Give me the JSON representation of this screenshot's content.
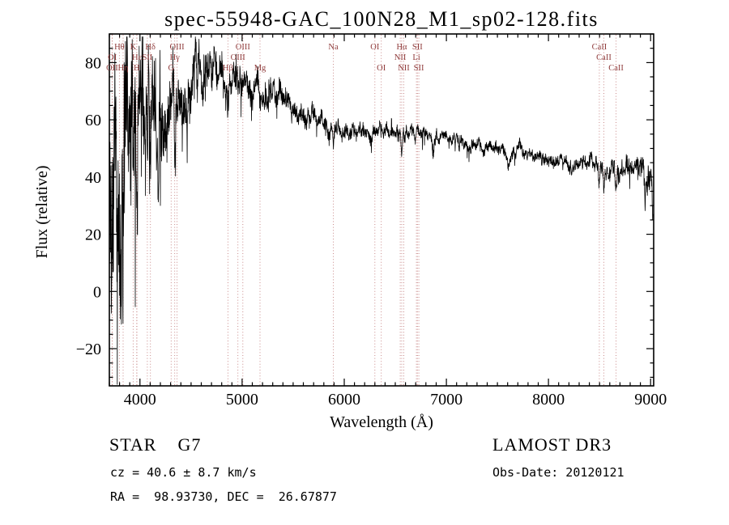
{
  "title": "spec-55948-GAC_100N28_M1_sp02-128.fits",
  "chart_data": {
    "type": "line",
    "title": "spec-55948-GAC_100N28_M1_sp02-128.fits",
    "xlabel": "Wavelength (Å)",
    "ylabel": "Flux (relative)",
    "xlim": [
      3700,
      9030
    ],
    "ylim": [
      -33,
      90
    ],
    "x_ticks": [
      4000,
      5000,
      6000,
      7000,
      8000,
      9000
    ],
    "x_minor_step": 100,
    "y_ticks": [
      -20,
      0,
      20,
      40,
      60,
      80
    ],
    "y_minor_step": 5,
    "grid": false,
    "legend": false,
    "line_color": "#000000",
    "marker_line_color": "#c47e7e",
    "marker_label_color": "#8f3b3b",
    "data_range": [
      3702,
      9022
    ],
    "sample_step": 2,
    "noise_seed": 19,
    "continuum": [
      [
        3705,
        34
      ],
      [
        3750,
        42
      ],
      [
        3800,
        46
      ],
      [
        3850,
        45
      ],
      [
        3900,
        50
      ],
      [
        3950,
        53
      ],
      [
        4000,
        56
      ],
      [
        4060,
        58
      ],
      [
        4120,
        60
      ],
      [
        4180,
        62
      ],
      [
        4240,
        64
      ],
      [
        4300,
        66
      ],
      [
        4360,
        68
      ],
      [
        4420,
        71
      ],
      [
        4500,
        74
      ],
      [
        4600,
        76
      ],
      [
        4700,
        77
      ],
      [
        4760,
        78
      ],
      [
        4820,
        77
      ],
      [
        4880,
        75
      ],
      [
        4940,
        74
      ],
      [
        5000,
        73
      ],
      [
        5080,
        72
      ],
      [
        5160,
        71
      ],
      [
        5240,
        69.5
      ],
      [
        5320,
        68
      ],
      [
        5400,
        66.5
      ],
      [
        5480,
        65
      ],
      [
        5560,
        63
      ],
      [
        5640,
        61
      ],
      [
        5720,
        59.5
      ],
      [
        5800,
        58
      ],
      [
        5880,
        56.5
      ],
      [
        5960,
        56
      ],
      [
        6040,
        56
      ],
      [
        6120,
        56
      ],
      [
        6200,
        55.5
      ],
      [
        6280,
        55
      ],
      [
        6360,
        55
      ],
      [
        6440,
        55.5
      ],
      [
        6520,
        56
      ],
      [
        6600,
        56
      ],
      [
        6680,
        55.5
      ],
      [
        6760,
        55
      ],
      [
        6840,
        54.5
      ],
      [
        6920,
        53.8
      ],
      [
        7000,
        53.2
      ],
      [
        7100,
        52.6
      ],
      [
        7200,
        52
      ],
      [
        7300,
        51.2
      ],
      [
        7400,
        50.6
      ],
      [
        7500,
        50
      ],
      [
        7600,
        49.3
      ],
      [
        7700,
        48.7
      ],
      [
        7800,
        48.1
      ],
      [
        7900,
        47.4
      ],
      [
        8000,
        46.8
      ],
      [
        8100,
        46.2
      ],
      [
        8200,
        45.6
      ],
      [
        8300,
        45
      ],
      [
        8400,
        44.5
      ],
      [
        8500,
        44
      ],
      [
        8600,
        43.4
      ],
      [
        8700,
        42.9
      ],
      [
        8800,
        42.4
      ],
      [
        8900,
        41.8
      ],
      [
        8960,
        41
      ],
      [
        9000,
        40
      ],
      [
        9012,
        37
      ],
      [
        9022,
        27
      ]
    ],
    "noise_profile": [
      [
        3705,
        30
      ],
      [
        3760,
        29
      ],
      [
        3820,
        28
      ],
      [
        3880,
        26
      ],
      [
        3940,
        24
      ],
      [
        4000,
        21
      ],
      [
        4060,
        19
      ],
      [
        4120,
        17
      ],
      [
        4180,
        14
      ],
      [
        4240,
        12.5
      ],
      [
        4300,
        11
      ],
      [
        4360,
        10
      ],
      [
        4420,
        8.5
      ],
      [
        4500,
        7.5
      ],
      [
        4600,
        7
      ],
      [
        4700,
        6.3
      ],
      [
        4800,
        5.6
      ],
      [
        4900,
        5
      ],
      [
        5000,
        4.6
      ],
      [
        5200,
        4.1
      ],
      [
        5400,
        3.7
      ],
      [
        5600,
        3.3
      ],
      [
        5800,
        3
      ],
      [
        6000,
        2.4
      ],
      [
        6200,
        2.2
      ],
      [
        6400,
        2.1
      ],
      [
        6600,
        2
      ],
      [
        6800,
        1.9
      ],
      [
        7000,
        1.85
      ],
      [
        7400,
        1.8
      ],
      [
        7800,
        1.9
      ],
      [
        8200,
        2.1
      ],
      [
        8600,
        2.5
      ],
      [
        8900,
        3.2
      ],
      [
        9022,
        4
      ]
    ],
    "absorption_features": [
      {
        "wl": 3933,
        "depth": 18,
        "width": 7
      },
      {
        "wl": 3968,
        "depth": 18,
        "width": 7
      },
      {
        "wl": 4102,
        "depth": 14,
        "width": 6
      },
      {
        "wl": 4305,
        "depth": 9,
        "width": 9
      },
      {
        "wl": 4340,
        "depth": 26,
        "width": 5
      },
      {
        "wl": 4861,
        "depth": 14,
        "width": 6
      },
      {
        "wl": 5175,
        "depth": 6,
        "width": 10
      },
      {
        "wl": 5893,
        "depth": 6,
        "width": 7
      },
      {
        "wl": 6563,
        "depth": 9,
        "width": 6
      },
      {
        "wl": 6872,
        "depth": 4,
        "width": 12
      },
      {
        "wl": 7190,
        "depth": 2.5,
        "width": 18
      },
      {
        "wl": 7615,
        "depth": 6,
        "width": 14
      },
      {
        "wl": 8230,
        "depth": 2,
        "width": 15
      },
      {
        "wl": 8498,
        "depth": 7,
        "width": 6
      },
      {
        "wl": 8542,
        "depth": 10,
        "width": 7
      },
      {
        "wl": 8662,
        "depth": 9,
        "width": 7
      },
      {
        "wl": 8945,
        "depth": 9,
        "width": 5
      }
    ],
    "spectral_lines": [
      {
        "label": "OII",
        "wl": 3727,
        "row": 3
      },
      {
        "label": "OI",
        "wl": 3729,
        "row": 2
      },
      {
        "label": "Hθ",
        "wl": 3798,
        "row": 1
      },
      {
        "label": "Hη",
        "wl": 3835,
        "row": 3
      },
      {
        "label": "K",
        "wl": 3933,
        "row": 1
      },
      {
        "label": "H",
        "wl": 3968,
        "row": 3
      },
      {
        "label": "Hε",
        "wl": 3970,
        "row": 2
      },
      {
        "label": "SII",
        "wl": 4072,
        "row": 2
      },
      {
        "label": "Hδ",
        "wl": 4102,
        "row": 1
      },
      {
        "label": "G",
        "wl": 4305,
        "row": 3
      },
      {
        "label": "Hγ",
        "wl": 4340,
        "row": 2
      },
      {
        "label": "OIII",
        "wl": 4363,
        "row": 1
      },
      {
        "label": "Hβ",
        "wl": 4861,
        "row": 3
      },
      {
        "label": "OIII",
        "wl": 4959,
        "row": 2
      },
      {
        "label": "OIII",
        "wl": 5007,
        "row": 1
      },
      {
        "label": "Mg",
        "wl": 5175,
        "row": 3
      },
      {
        "label": "Na",
        "wl": 5893,
        "row": 1
      },
      {
        "label": "OI",
        "wl": 6300,
        "row": 1
      },
      {
        "label": "OI",
        "wl": 6363,
        "row": 3
      },
      {
        "label": "NII",
        "wl": 6548,
        "row": 2
      },
      {
        "label": "Hα",
        "wl": 6563,
        "row": 1
      },
      {
        "label": "NII",
        "wl": 6583,
        "row": 3
      },
      {
        "label": "Li",
        "wl": 6707,
        "row": 2
      },
      {
        "label": "SII",
        "wl": 6716,
        "row": 1
      },
      {
        "label": "SII",
        "wl": 6731,
        "row": 3
      },
      {
        "label": "CaII",
        "wl": 8498,
        "row": 1
      },
      {
        "label": "CaII",
        "wl": 8542,
        "row": 2
      },
      {
        "label": "CaII",
        "wl": 8662,
        "row": 3
      }
    ]
  },
  "annotations": {
    "class_label": "STAR    G7",
    "survey": "LAMOST DR3",
    "cz": "cz = 40.6 ± 8.7 km/s",
    "obs_date": "Obs-Date: 20120121",
    "radec": "RA =  98.93730, DEC =  26.67877"
  }
}
